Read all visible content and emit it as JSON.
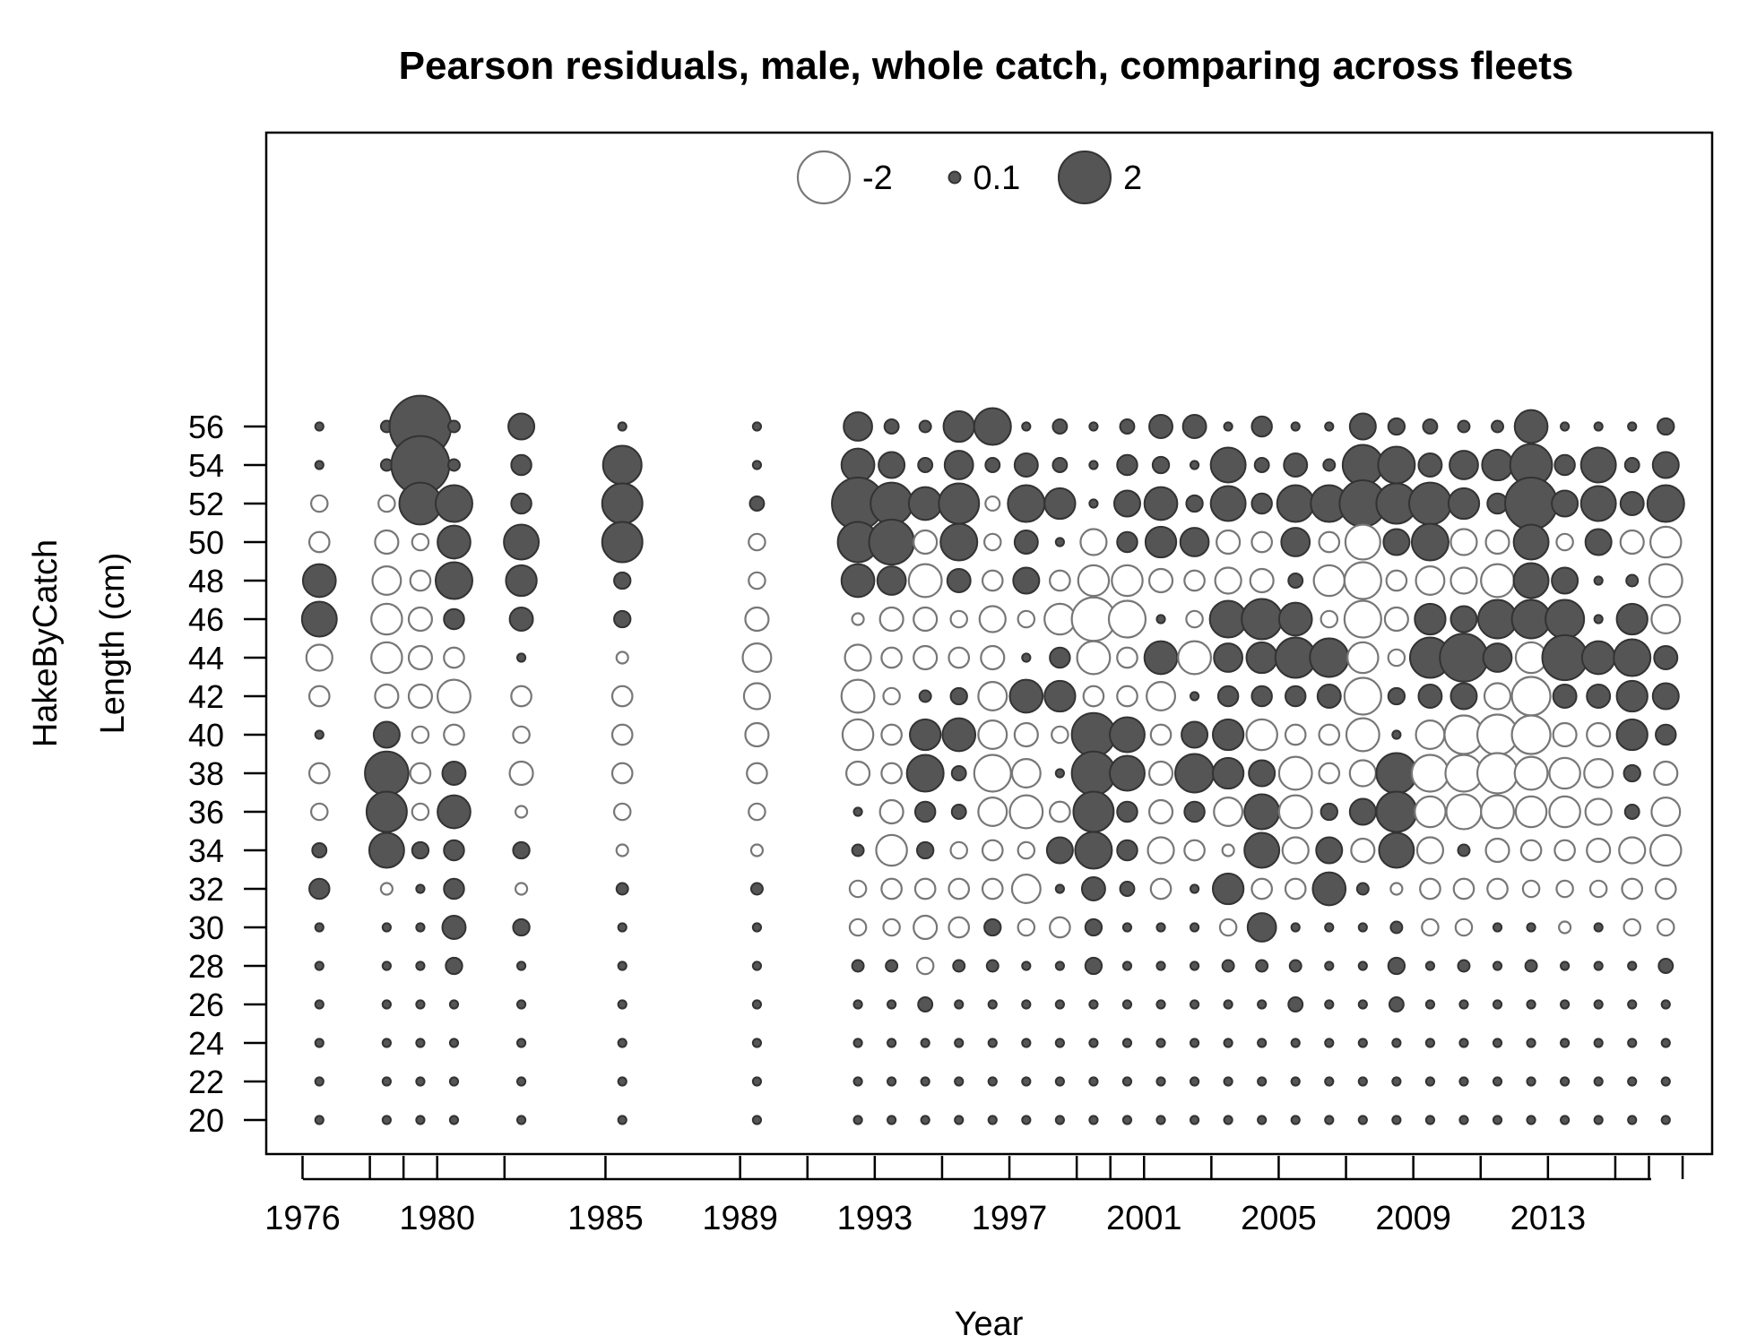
{
  "chart_data": {
    "type": "scatter",
    "subtype": "bubble",
    "title": "Pearson residuals, male, whole catch, comparing across fleets",
    "xlabel": "Year",
    "ylabel_line1": "HakeByCatch",
    "ylabel_line2": "Length (cm)",
    "xlim": [
      1975,
      2018
    ],
    "ylim": [
      18,
      74
    ],
    "x_tick_labels": [
      1976,
      1980,
      1985,
      1989,
      1993,
      1997,
      2001,
      2005,
      2009,
      2013
    ],
    "x_minor_ticks": [
      1976,
      1978,
      1979,
      1980,
      1982,
      1985,
      1989,
      1991,
      1993,
      1995,
      1997,
      1999,
      2000,
      2001,
      2003,
      2005,
      2007,
      2009,
      2011,
      2013,
      2015,
      2016,
      2017
    ],
    "y_tick_labels": [
      20,
      22,
      24,
      26,
      28,
      30,
      32,
      34,
      36,
      38,
      40,
      42,
      44,
      46,
      48,
      50,
      52,
      54,
      56
    ],
    "legend": {
      "placement": "top-center",
      "entries": [
        {
          "label": "-2",
          "value": -2
        },
        {
          "label": "0.1",
          "value": 0.1
        },
        {
          "label": "2",
          "value": 2
        }
      ]
    },
    "colors": {
      "positive_fill": "#555555",
      "positive_stroke": "#333333",
      "negative_fill": "#ffffff",
      "negative_stroke": "#777777"
    },
    "lengths_top_down": [
      56,
      54,
      52,
      50,
      48,
      46,
      44,
      42,
      40,
      38,
      36,
      34,
      32,
      30,
      28,
      26,
      24,
      22,
      20
    ],
    "series": [
      {
        "year": 1976.5,
        "residuals": [
          0.05,
          0.05,
          -0.2,
          -0.3,
          0.8,
          0.9,
          -0.5,
          -0.3,
          0.05,
          -0.3,
          -0.2,
          0.15,
          0.3,
          0.05,
          0.05,
          0.05,
          0.05,
          0.05,
          0.05
        ]
      },
      {
        "year": 1978.5,
        "residuals": [
          0.1,
          0.1,
          -0.2,
          -0.4,
          -0.6,
          -0.7,
          -0.7,
          -0.4,
          0.5,
          1.4,
          1.2,
          0.9,
          -0.1,
          0.05,
          0.05,
          0.05,
          0.05,
          0.05,
          0.05
        ]
      },
      {
        "year": 1979.5,
        "residuals": [
          2.8,
          2.5,
          1.3,
          -0.2,
          -0.3,
          -0.4,
          -0.4,
          -0.4,
          -0.2,
          -0.3,
          -0.2,
          0.2,
          0.05,
          0.05,
          0.05,
          0.05,
          0.05,
          0.05,
          0.05
        ]
      },
      {
        "year": 1980.5,
        "residuals": [
          0.1,
          0.1,
          1.0,
          0.8,
          1.0,
          0.3,
          -0.3,
          -0.8,
          -0.3,
          0.4,
          0.8,
          0.3,
          0.3,
          0.4,
          0.2,
          0.05,
          0.05,
          0.05,
          0.05
        ]
      },
      {
        "year": 1982.5,
        "residuals": [
          0.5,
          0.3,
          0.3,
          0.9,
          0.7,
          0.4,
          0.05,
          -0.3,
          -0.2,
          -0.4,
          -0.1,
          0.2,
          -0.1,
          0.2,
          0.05,
          0.05,
          0.05,
          0.05,
          0.05
        ]
      },
      {
        "year": 1985.5,
        "residuals": [
          0.05,
          1.1,
          1.2,
          1.2,
          0.2,
          0.2,
          -0.1,
          -0.3,
          -0.3,
          -0.3,
          -0.2,
          -0.1,
          0.1,
          0.05,
          0.05,
          0.05,
          0.05,
          0.05,
          0.05
        ]
      },
      {
        "year": 1989.5,
        "residuals": [
          0.05,
          0.05,
          0.15,
          -0.2,
          -0.2,
          -0.4,
          -0.6,
          -0.5,
          -0.4,
          -0.3,
          -0.2,
          -0.1,
          0.1,
          0.05,
          0.05,
          0.05,
          0.05,
          0.05,
          0.05
        ]
      },
      {
        "year": 1992.5,
        "residuals": [
          0.6,
          0.8,
          2.0,
          1.2,
          0.8,
          -0.1,
          -0.5,
          -0.8,
          -0.7,
          -0.4,
          0.05,
          0.1,
          -0.2,
          -0.2,
          0.1,
          0.05,
          0.05,
          0.05,
          0.05
        ]
      },
      {
        "year": 1993.5,
        "residuals": [
          0.15,
          0.5,
          1.3,
          1.5,
          0.6,
          -0.4,
          -0.3,
          -0.2,
          -0.3,
          -0.3,
          -0.4,
          -0.7,
          -0.3,
          -0.2,
          0.1,
          0.05,
          0.05,
          0.05,
          0.05
        ]
      },
      {
        "year": 1994.5,
        "residuals": [
          0.1,
          0.15,
          0.8,
          -0.4,
          -0.8,
          -0.4,
          -0.4,
          0.1,
          0.7,
          1.0,
          0.3,
          0.2,
          -0.3,
          -0.4,
          -0.2,
          0.15,
          0.05,
          0.05,
          0.05
        ]
      },
      {
        "year": 1995.5,
        "residuals": [
          0.7,
          0.6,
          1.2,
          1.0,
          0.4,
          -0.2,
          -0.3,
          0.2,
          0.8,
          0.15,
          0.15,
          -0.2,
          -0.3,
          -0.3,
          0.1,
          0.05,
          0.05,
          0.05,
          0.05
        ]
      },
      {
        "year": 1996.5,
        "residuals": [
          1.0,
          0.15,
          -0.15,
          -0.2,
          -0.3,
          -0.5,
          -0.4,
          -0.6,
          -0.6,
          -1.0,
          -0.6,
          -0.3,
          -0.3,
          0.2,
          0.1,
          0.05,
          0.05,
          0.05,
          0.05
        ]
      },
      {
        "year": 1997.5,
        "residuals": [
          0.05,
          0.4,
          1.0,
          0.4,
          0.5,
          -0.2,
          0.05,
          0.8,
          -0.4,
          -0.6,
          -0.8,
          -0.2,
          -0.6,
          -0.2,
          0.05,
          0.05,
          0.05,
          0.05,
          0.05
        ]
      },
      {
        "year": 1998.5,
        "residuals": [
          0.15,
          0.15,
          0.7,
          0.05,
          -0.3,
          -0.7,
          0.3,
          0.7,
          -0.2,
          0.05,
          -0.3,
          0.5,
          0.05,
          -0.3,
          0.05,
          0.05,
          0.05,
          0.05,
          0.05
        ]
      },
      {
        "year": 1999.5,
        "residuals": [
          0.05,
          0.05,
          0.05,
          -0.5,
          -0.7,
          -1.4,
          -0.8,
          -0.3,
          1.4,
          1.4,
          1.2,
          1.0,
          0.4,
          0.2,
          0.2,
          0.05,
          0.05,
          0.05,
          0.05
        ]
      },
      {
        "year": 2000.5,
        "residuals": [
          0.15,
          0.3,
          0.5,
          0.3,
          -0.7,
          -1.0,
          -0.3,
          -0.3,
          0.9,
          0.9,
          0.3,
          0.3,
          0.15,
          0.05,
          0.05,
          0.05,
          0.05,
          0.05,
          0.05
        ]
      },
      {
        "year": 2001.5,
        "residuals": [
          0.4,
          0.2,
          0.8,
          0.7,
          -0.4,
          0.05,
          0.8,
          -0.6,
          -0.3,
          -0.4,
          -0.4,
          -0.5,
          -0.3,
          0.05,
          0.05,
          0.05,
          0.05,
          0.05,
          0.05
        ]
      },
      {
        "year": 2002.5,
        "residuals": [
          0.4,
          0.05,
          0.2,
          0.6,
          -0.3,
          -0.2,
          -0.8,
          0.05,
          0.5,
          1.1,
          0.3,
          -0.3,
          0.05,
          0.05,
          0.05,
          0.05,
          0.05,
          0.05,
          0.05
        ]
      },
      {
        "year": 2003.5,
        "residuals": [
          0.05,
          0.9,
          0.9,
          -0.4,
          -0.5,
          1.0,
          0.6,
          0.3,
          0.7,
          0.7,
          -0.6,
          -0.1,
          0.7,
          -0.2,
          0.1,
          0.05,
          0.05,
          0.05,
          0.05
        ]
      },
      {
        "year": 2004.5,
        "residuals": [
          0.3,
          0.15,
          0.3,
          -0.3,
          -0.4,
          1.2,
          0.7,
          0.3,
          -0.7,
          0.5,
          0.9,
          0.9,
          -0.3,
          0.6,
          0.1,
          0.05,
          0.05,
          0.05,
          0.05
        ]
      },
      {
        "year": 2005.5,
        "residuals": [
          0.05,
          0.4,
          1.0,
          0.6,
          0.15,
          0.8,
          1.2,
          0.3,
          -0.3,
          -0.8,
          -0.8,
          -0.5,
          -0.3,
          0.05,
          0.1,
          0.15,
          0.05,
          0.05,
          0.05
        ]
      },
      {
        "year": 2006.5,
        "residuals": [
          0.05,
          0.1,
          1.0,
          -0.3,
          -0.7,
          -0.2,
          1.1,
          0.4,
          -0.3,
          -0.3,
          0.2,
          0.5,
          0.8,
          0.05,
          0.05,
          0.05,
          0.05,
          0.05,
          0.05
        ]
      },
      {
        "year": 2007.5,
        "residuals": [
          0.5,
          1.2,
          1.6,
          -0.9,
          -1.0,
          -1.0,
          -0.7,
          -1.0,
          -0.8,
          -0.5,
          0.5,
          -0.4,
          0.1,
          0.05,
          0.05,
          0.05,
          0.05,
          0.05,
          0.05
        ]
      },
      {
        "year": 2008.5,
        "residuals": [
          0.2,
          1.0,
          1.2,
          0.5,
          -0.3,
          -0.4,
          -0.2,
          0.2,
          0.05,
          1.2,
          1.2,
          0.9,
          -0.1,
          0.1,
          0.2,
          0.15,
          0.05,
          0.05,
          0.05
        ]
      },
      {
        "year": 2009.5,
        "residuals": [
          0.15,
          0.4,
          1.3,
          1.0,
          -0.6,
          0.7,
          1.2,
          0.4,
          -0.6,
          -1.0,
          -0.7,
          -0.5,
          -0.3,
          -0.2,
          0.05,
          0.05,
          0.05,
          0.05,
          0.05
        ]
      },
      {
        "year": 2010.5,
        "residuals": [
          0.1,
          0.6,
          0.7,
          -0.5,
          -0.5,
          0.5,
          1.7,
          0.5,
          -1.1,
          -1.0,
          -0.9,
          0.1,
          -0.3,
          -0.2,
          0.1,
          0.05,
          0.05,
          0.05,
          0.05
        ]
      },
      {
        "year": 2011.5,
        "residuals": [
          0.1,
          0.7,
          0.3,
          -0.4,
          -0.8,
          1.1,
          0.6,
          -0.5,
          -1.2,
          -1.2,
          -0.8,
          -0.4,
          -0.3,
          0.05,
          0.05,
          0.05,
          0.05,
          0.05,
          0.05
        ]
      },
      {
        "year": 2012.5,
        "residuals": [
          0.8,
          1.3,
          2.0,
          0.9,
          0.9,
          1.1,
          -0.7,
          -1.1,
          -1.1,
          -0.8,
          -0.7,
          -0.3,
          -0.2,
          0.05,
          0.1,
          0.05,
          0.05,
          0.05,
          0.05
        ]
      },
      {
        "year": 2013.5,
        "residuals": [
          0.05,
          0.3,
          0.5,
          -0.2,
          0.5,
          1.1,
          1.5,
          0.4,
          -0.4,
          -0.7,
          -0.7,
          -0.3,
          -0.2,
          -0.1,
          0.05,
          0.05,
          0.05,
          0.05,
          0.05
        ]
      },
      {
        "year": 2014.5,
        "residuals": [
          0.05,
          0.9,
          0.9,
          0.5,
          0.05,
          0.05,
          0.8,
          0.4,
          -0.4,
          -0.6,
          -0.5,
          -0.4,
          -0.2,
          0.05,
          0.05,
          0.05,
          0.05,
          0.05,
          0.05
        ]
      },
      {
        "year": 2015.5,
        "residuals": [
          0.05,
          0.15,
          0.4,
          -0.4,
          0.1,
          0.7,
          1.0,
          0.7,
          0.7,
          0.2,
          0.15,
          -0.5,
          -0.3,
          -0.2,
          0.05,
          0.05,
          0.05,
          0.05,
          0.05
        ]
      },
      {
        "year": 2016.5,
        "residuals": [
          0.2,
          0.5,
          1.0,
          -0.7,
          -0.8,
          -0.6,
          0.4,
          0.5,
          0.3,
          -0.4,
          -0.6,
          -0.7,
          -0.3,
          -0.2,
          0.15,
          0.05,
          0.05,
          0.05,
          0.05
        ]
      }
    ]
  }
}
